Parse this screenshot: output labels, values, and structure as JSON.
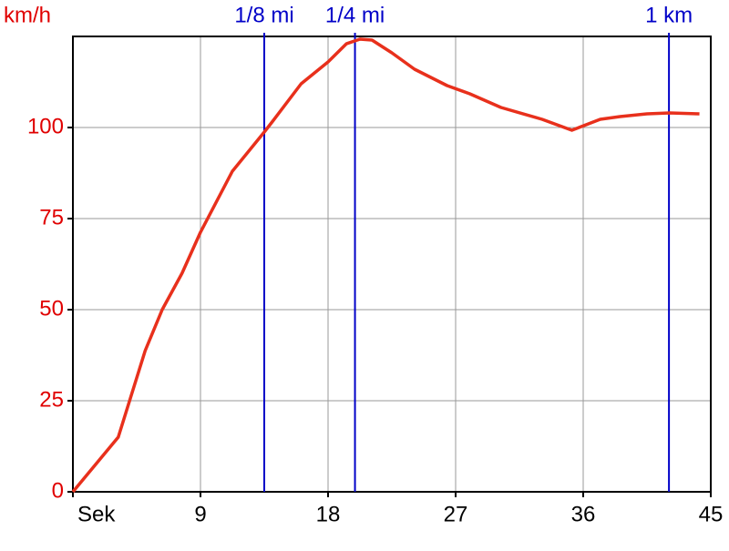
{
  "chart_data": {
    "type": "line",
    "y_label": "km/h",
    "x": [
      0,
      3.2,
      5.1,
      6.3,
      7.7,
      9,
      11.25,
      13.5,
      14.1,
      16.1,
      18,
      19.3,
      20.25,
      21.1,
      22.5,
      24.1,
      26.4,
      28,
      30.2,
      33.1,
      35.2,
      37.2,
      38.6,
      40.5,
      42.1,
      44.2
    ],
    "values": [
      0,
      15,
      38.75,
      50,
      60,
      71.25,
      88,
      98.75,
      101.75,
      112,
      118,
      123,
      124.25,
      124,
      120.5,
      116,
      111.5,
      109.25,
      105.5,
      102.25,
      99.25,
      102.25,
      103,
      103.75,
      104,
      103.75
    ],
    "color": "#e8301c",
    "xlim": [
      0,
      45
    ],
    "ylim": [
      0,
      125
    ],
    "xticks": [
      {
        "value": 0,
        "label": "Sek"
      },
      9,
      18,
      27,
      36,
      45
    ],
    "yticks": [
      0,
      25,
      50,
      75,
      100
    ],
    "grid": true,
    "y_tick_color": "#e00000",
    "markers": [
      {
        "label": "1/8 mi",
        "x": 13.5
      },
      {
        "label": "1/4 mi",
        "x": 19.9
      },
      {
        "label": "1 km",
        "x": 42.05
      }
    ],
    "marker_color": "#0000c8"
  }
}
